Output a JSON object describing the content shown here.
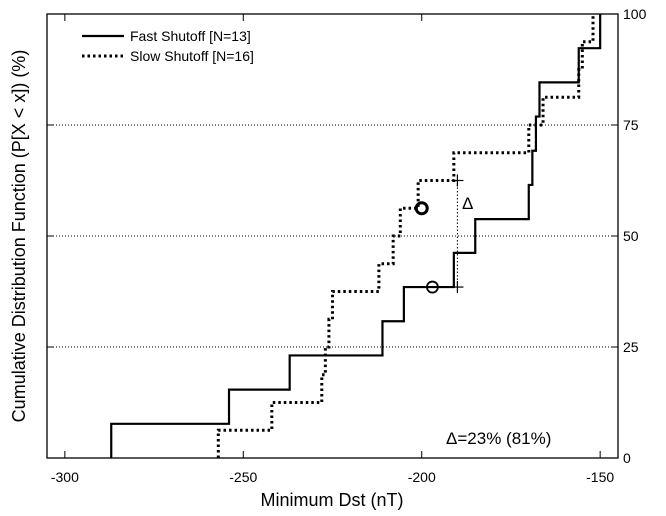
{
  "chart_data": {
    "type": "line",
    "step": true,
    "xlabel": "Minimum Dst (nT)",
    "ylabel": "Cumulative Distribution Function (P[X < x]) (%)",
    "xlim": [
      -305,
      -145
    ],
    "ylim": [
      0,
      100
    ],
    "xticks": [
      -300,
      -250,
      -200,
      -150
    ],
    "yticks": [
      0,
      25,
      50,
      75,
      100
    ],
    "xtick_labels": [
      "-300",
      "-250",
      "-200",
      "-150"
    ],
    "ytick_labels": [
      "0",
      "25",
      "50",
      "75",
      "100"
    ],
    "hgrid_dotted": [
      25,
      50,
      75
    ],
    "legend_position": "top-left",
    "series": [
      {
        "name": "Fast Shutoff [N=13]",
        "style": "solid",
        "color": "#000000",
        "steps": [
          [
            -287,
            7.7
          ],
          [
            -254,
            15.4
          ],
          [
            -237,
            23.1
          ],
          [
            -211,
            30.8
          ],
          [
            -205,
            38.5
          ],
          [
            -191,
            46.2
          ],
          [
            -185,
            53.8
          ],
          [
            -170,
            61.5
          ],
          [
            -169,
            69.2
          ],
          [
            -168,
            76.9
          ],
          [
            -167,
            84.6
          ],
          [
            -156,
            92.3
          ],
          [
            -150,
            100
          ]
        ]
      },
      {
        "name": "Slow Shutoff [N=16]",
        "style": "dotted",
        "color": "#000000",
        "steps": [
          [
            -257,
            6.25
          ],
          [
            -242,
            12.5
          ],
          [
            -228,
            18.75
          ],
          [
            -227,
            25
          ],
          [
            -226,
            31.25
          ],
          [
            -225,
            37.5
          ],
          [
            -212,
            43.75
          ],
          [
            -208,
            50
          ],
          [
            -206,
            56.25
          ],
          [
            -201,
            62.5
          ],
          [
            -191,
            68.75
          ],
          [
            -170,
            75
          ],
          [
            -166,
            81.25
          ],
          [
            -156,
            87.5
          ],
          [
            -155,
            93.75
          ],
          [
            -152,
            100
          ]
        ]
      }
    ],
    "markers": [
      {
        "series": "Slow Shutoff [N=16]",
        "x": -200,
        "y": 56.25,
        "shape": "circle",
        "weight": "bold"
      },
      {
        "series": "Fast Shutoff [N=13]",
        "x": -197,
        "y": 38.5,
        "shape": "circle",
        "weight": "normal"
      }
    ],
    "delta_marker": {
      "x": -190,
      "y_low": 38.5,
      "y_high": 62.5,
      "label": "Δ"
    },
    "annotation": "Δ=23% (81%)"
  }
}
